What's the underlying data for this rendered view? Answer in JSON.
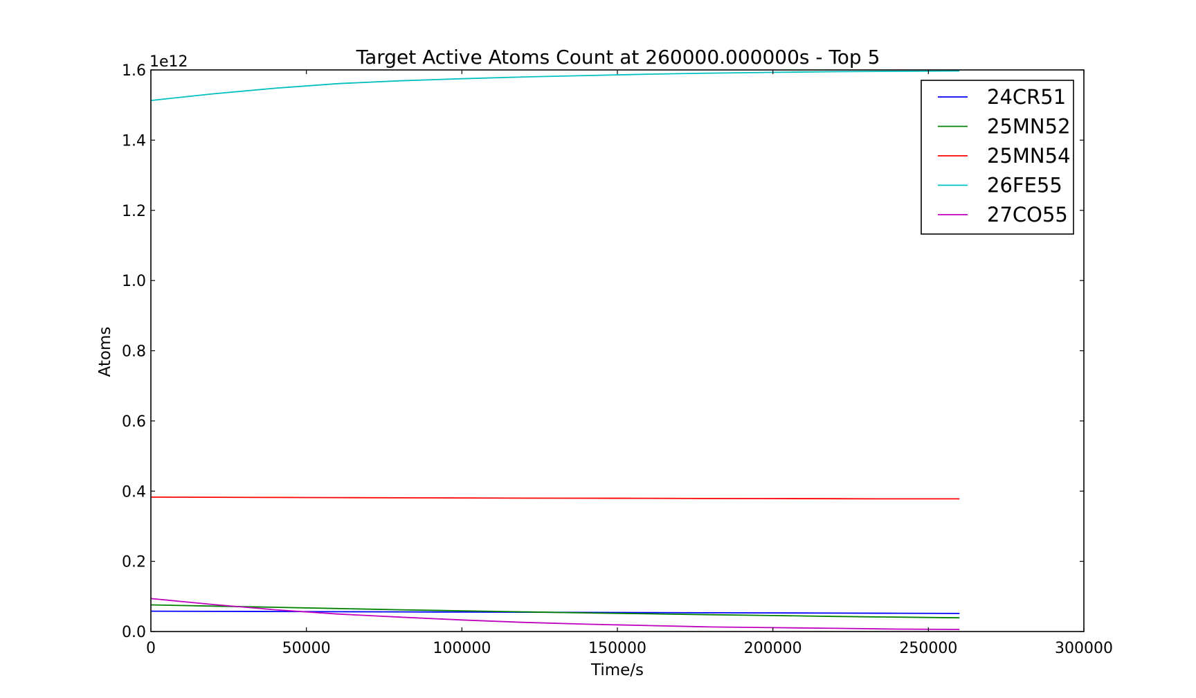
{
  "chart_data": {
    "type": "line",
    "title": "Target Active Atoms Count  at 260000.000000s - Top 5",
    "xlabel": "Time/s",
    "ylabel": "Atoms",
    "y_offset_label": "1e12",
    "xlim": [
      0,
      300000
    ],
    "ylim": [
      0,
      1.6
    ],
    "x_ticks": [
      0,
      50000,
      100000,
      150000,
      200000,
      250000,
      300000
    ],
    "x_tick_labels": [
      "0",
      "50000",
      "100000",
      "150000",
      "200000",
      "250000",
      "300000"
    ],
    "y_ticks": [
      0.0,
      0.2,
      0.4,
      0.6,
      0.8,
      1.0,
      1.2,
      1.4,
      1.6
    ],
    "y_tick_labels": [
      "0.0",
      "0.2",
      "0.4",
      "0.6",
      "0.8",
      "1.0",
      "1.2",
      "1.4",
      "1.6"
    ],
    "y_scale_factor": 1000000000000.0,
    "grid": false,
    "legend_position": "top-right",
    "x": [
      0,
      20000,
      40000,
      60000,
      80000,
      100000,
      120000,
      140000,
      160000,
      180000,
      200000,
      220000,
      240000,
      260000
    ],
    "series": [
      {
        "name": "24CR51",
        "color": "#0000ff",
        "values": [
          0.058,
          0.0575,
          0.057,
          0.0565,
          0.056,
          0.0555,
          0.055,
          0.0545,
          0.054,
          0.0535,
          0.053,
          0.0525,
          0.052,
          0.0515
        ]
      },
      {
        "name": "25MN52",
        "color": "#008000",
        "values": [
          0.076,
          0.0725,
          0.069,
          0.0655,
          0.062,
          0.059,
          0.056,
          0.053,
          0.0505,
          0.048,
          0.0455,
          0.043,
          0.041,
          0.039
        ]
      },
      {
        "name": "25MN54",
        "color": "#ff0000",
        "values": [
          0.383,
          0.3825,
          0.382,
          0.3815,
          0.381,
          0.3805,
          0.38,
          0.3798,
          0.3795,
          0.379,
          0.3787,
          0.3784,
          0.378,
          0.378
        ]
      },
      {
        "name": "26FE55",
        "color": "#00bfbf",
        "values": [
          1.513,
          1.532,
          1.548,
          1.561,
          1.569,
          1.575,
          1.58,
          1.584,
          1.588,
          1.591,
          1.593,
          1.595,
          1.596,
          1.597
        ]
      },
      {
        "name": "27CO55",
        "color": "#bf00bf",
        "values": [
          0.094,
          0.077,
          0.062,
          0.05,
          0.041,
          0.033,
          0.026,
          0.021,
          0.017,
          0.013,
          0.011,
          0.009,
          0.007,
          0.006
        ]
      }
    ]
  }
}
